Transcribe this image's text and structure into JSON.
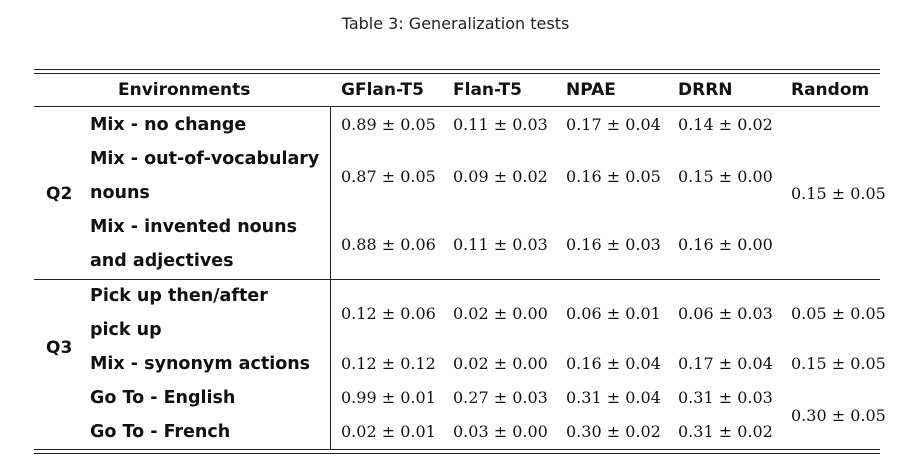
{
  "caption": "Table 3: Generalization tests",
  "header": {
    "environments": "Environments",
    "gflan": "GFlan-T5",
    "flan": "Flan-T5",
    "npae": "NPAE",
    "drrn": "DRRN",
    "random": "Random"
  },
  "groups": {
    "q2": "Q2",
    "q3": "Q3"
  },
  "rows": [
    {
      "env": [
        "Mix - no change"
      ],
      "gflan": "0.89 ± 0.05",
      "flan": "0.11 ± 0.03",
      "npae": "0.17 ± 0.04",
      "drrn": "0.14 ± 0.02"
    },
    {
      "env": [
        "Mix - out-of-vocabulary",
        "nouns"
      ],
      "gflan": "0.87 ± 0.05",
      "flan": "0.09 ± 0.02",
      "npae": "0.16 ± 0.05",
      "drrn": "0.15 ± 0.00"
    },
    {
      "env": [
        "Mix - invented nouns",
        "and adjectives"
      ],
      "gflan": "0.88 ± 0.06",
      "flan": "0.11 ± 0.03",
      "npae": "0.16 ± 0.03",
      "drrn": "0.16 ± 0.00"
    },
    {
      "env": [
        "Pick up then/after",
        "pick up"
      ],
      "gflan": "0.12 ± 0.06",
      "flan": "0.02 ± 0.00",
      "npae": "0.06 ± 0.01",
      "drrn": "0.06 ± 0.03",
      "random": "0.05 ± 0.05"
    },
    {
      "env": [
        "Mix - synonym actions"
      ],
      "gflan": "0.12 ± 0.12",
      "flan": "0.02 ± 0.00",
      "npae": "0.16 ± 0.04",
      "drrn": "0.17 ± 0.04",
      "random": "0.15 ± 0.05"
    },
    {
      "env": [
        "Go To - English"
      ],
      "gflan": "0.99 ± 0.01",
      "flan": "0.27 ± 0.03",
      "npae": "0.31 ± 0.04",
      "drrn": "0.31 ± 0.03"
    },
    {
      "env": [
        "Go To - French"
      ],
      "gflan": "0.02 ± 0.01",
      "flan": "0.03 ± 0.00",
      "npae": "0.30 ± 0.02",
      "drrn": "0.31 ± 0.02"
    }
  ],
  "merged_random": {
    "q2": "0.15 ± 0.05",
    "goto": "0.30 ± 0.05"
  }
}
